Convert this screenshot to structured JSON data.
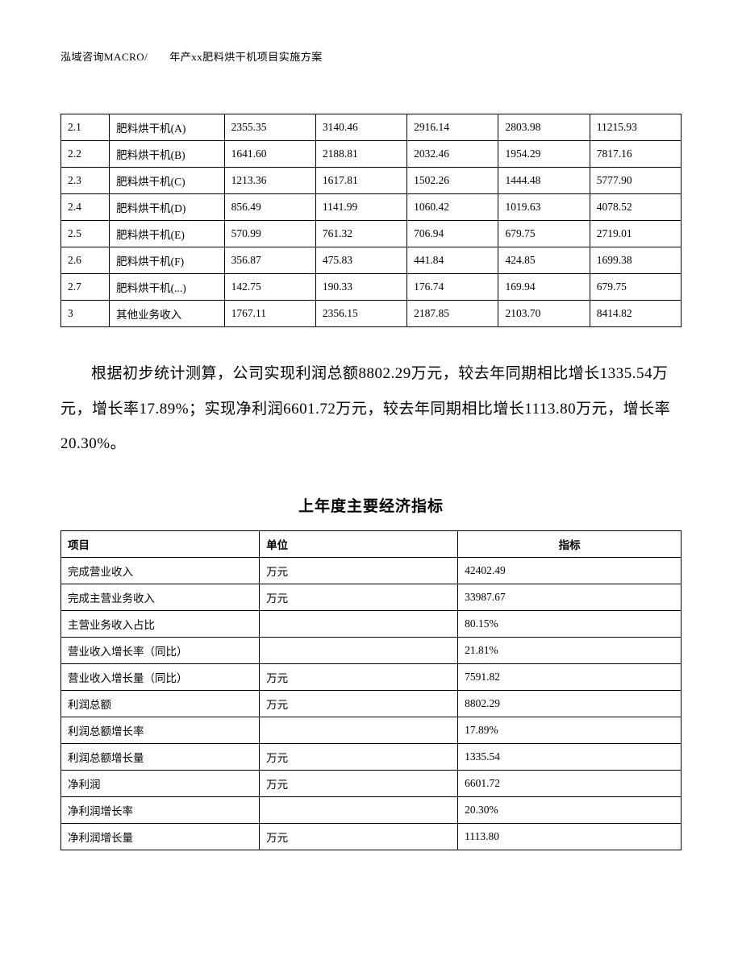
{
  "header": "泓域咨询MACRO/　　年产xx肥料烘干机项目实施方案",
  "table1": {
    "rows": [
      {
        "idx": "2.1",
        "name": "肥料烘干机(A)",
        "v1": "2355.35",
        "v2": "3140.46",
        "v3": "2916.14",
        "v4": "2803.98",
        "v5": "11215.93"
      },
      {
        "idx": "2.2",
        "name": "肥料烘干机(B)",
        "v1": "1641.60",
        "v2": "2188.81",
        "v3": "2032.46",
        "v4": "1954.29",
        "v5": "7817.16"
      },
      {
        "idx": "2.3",
        "name": "肥料烘干机(C)",
        "v1": "1213.36",
        "v2": "1617.81",
        "v3": "1502.26",
        "v4": "1444.48",
        "v5": "5777.90"
      },
      {
        "idx": "2.4",
        "name": "肥料烘干机(D)",
        "v1": "856.49",
        "v2": "1141.99",
        "v3": "1060.42",
        "v4": "1019.63",
        "v5": "4078.52"
      },
      {
        "idx": "2.5",
        "name": "肥料烘干机(E)",
        "v1": "570.99",
        "v2": "761.32",
        "v3": "706.94",
        "v4": "679.75",
        "v5": "2719.01"
      },
      {
        "idx": "2.6",
        "name": "肥料烘干机(F)",
        "v1": "356.87",
        "v2": "475.83",
        "v3": "441.84",
        "v4": "424.85",
        "v5": "1699.38"
      },
      {
        "idx": "2.7",
        "name": "肥料烘干机(...)",
        "v1": "142.75",
        "v2": "190.33",
        "v3": "176.74",
        "v4": "169.94",
        "v5": "679.75"
      },
      {
        "idx": "3",
        "name": "其他业务收入",
        "v1": "1767.11",
        "v2": "2356.15",
        "v3": "2187.85",
        "v4": "2103.70",
        "v5": "8414.82"
      }
    ]
  },
  "paragraph": "根据初步统计测算，公司实现利润总额8802.29万元，较去年同期相比增长1335.54万元，增长率17.89%；实现净利润6601.72万元，较去年同期相比增长1113.80万元，增长率20.30%。",
  "section_title": "上年度主要经济指标",
  "table2": {
    "headers": {
      "item": "项目",
      "unit": "单位",
      "indicator": "指标"
    },
    "rows": [
      {
        "item": "完成营业收入",
        "unit": "万元",
        "value": "42402.49"
      },
      {
        "item": "完成主营业务收入",
        "unit": "万元",
        "value": "33987.67"
      },
      {
        "item": "主营业务收入占比",
        "unit": "",
        "value": "80.15%"
      },
      {
        "item": "营业收入增长率（同比）",
        "unit": "",
        "value": "21.81%"
      },
      {
        "item": "营业收入增长量（同比）",
        "unit": "万元",
        "value": "7591.82"
      },
      {
        "item": "利润总额",
        "unit": "万元",
        "value": "8802.29"
      },
      {
        "item": "利润总额增长率",
        "unit": "",
        "value": "17.89%"
      },
      {
        "item": "利润总额增长量",
        "unit": "万元",
        "value": "1335.54"
      },
      {
        "item": "净利润",
        "unit": "万元",
        "value": "6601.72"
      },
      {
        "item": "净利润增长率",
        "unit": "",
        "value": "20.30%"
      },
      {
        "item": "净利润增长量",
        "unit": "万元",
        "value": "1113.80"
      }
    ]
  }
}
